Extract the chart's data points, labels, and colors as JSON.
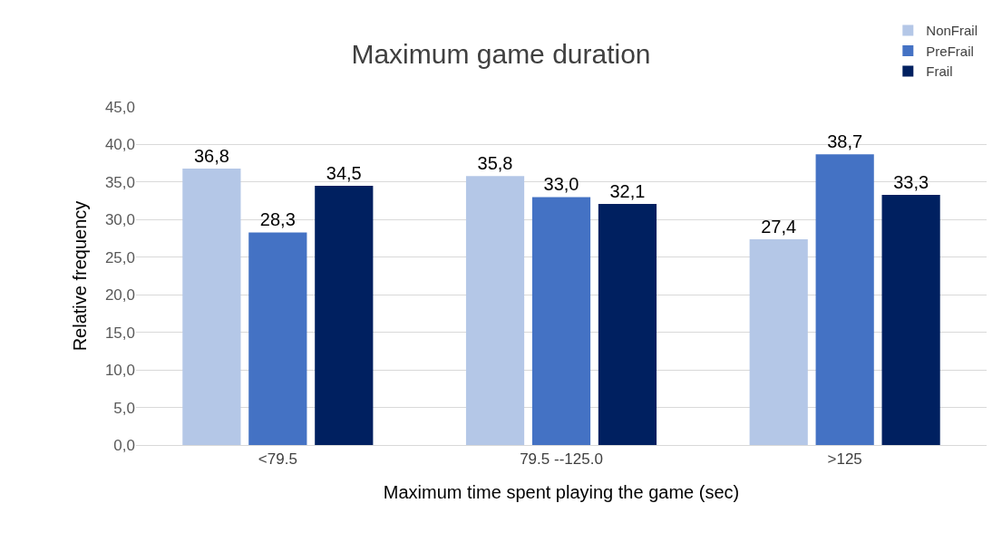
{
  "chart_data": {
    "type": "bar",
    "title": "Maximum game duration",
    "xlabel": "Maximum time spent playing the game (sec)",
    "ylabel": "Relative frequency",
    "categories": [
      "<79.5",
      "79.5 --125.0",
      ">125"
    ],
    "series": [
      {
        "name": "NonFrail",
        "color": "#b4c7e7",
        "values": [
          36.8,
          35.8,
          27.4
        ],
        "value_labels": [
          "36,8",
          "35,8",
          "27,4"
        ]
      },
      {
        "name": "PreFrail",
        "color": "#4472c4",
        "values": [
          28.3,
          33.0,
          38.7
        ],
        "value_labels": [
          "28,3",
          "33,0",
          "38,7"
        ]
      },
      {
        "name": "Frail",
        "color": "#002060",
        "values": [
          34.5,
          32.1,
          33.3
        ],
        "value_labels": [
          "34,5",
          "32,1",
          "33,3"
        ]
      }
    ],
    "ylim": [
      0,
      45
    ],
    "yticks": [
      {
        "value": 0,
        "label": "0,0"
      },
      {
        "value": 5,
        "label": "5,0"
      },
      {
        "value": 10,
        "label": "10,0"
      },
      {
        "value": 15,
        "label": "15,0"
      },
      {
        "value": 20,
        "label": "20,0"
      },
      {
        "value": 25,
        "label": "25,0"
      },
      {
        "value": 30,
        "label": "30,0"
      },
      {
        "value": 35,
        "label": "35,0"
      },
      {
        "value": 40,
        "label": "40,0"
      },
      {
        "value": 45,
        "label": "45,0"
      }
    ],
    "grid": "y",
    "legend": "top right"
  }
}
